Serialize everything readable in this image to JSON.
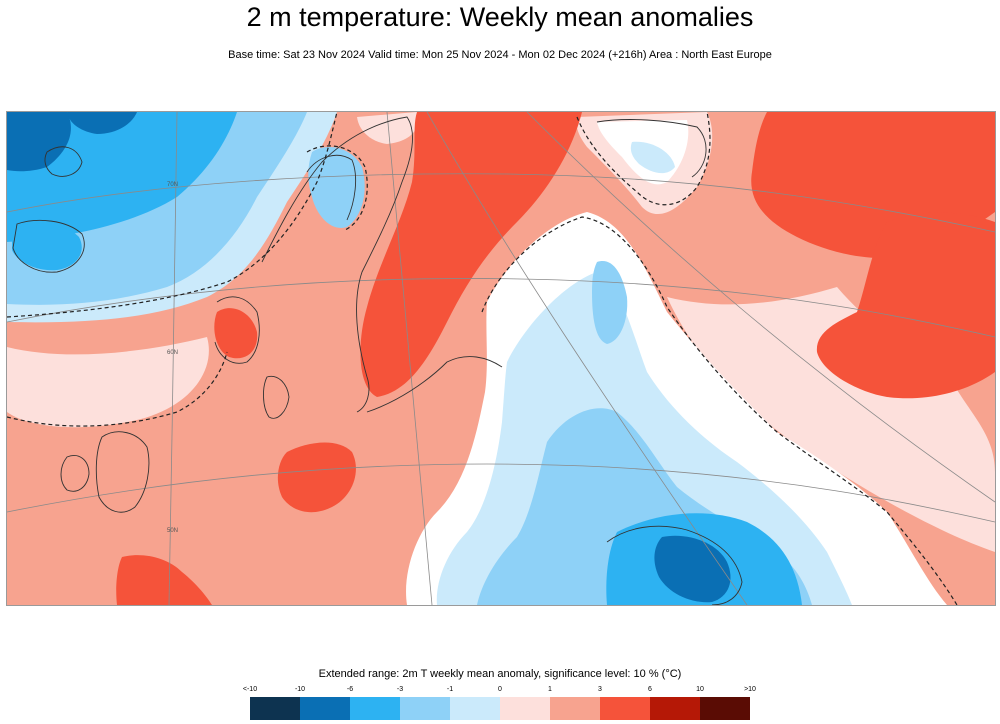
{
  "header": {
    "title": "2 m temperature: Weekly mean anomalies",
    "subtitle": "Base time: Sat 23 Nov 2024 Valid time: Mon 25 Nov 2024 - Mon 02 Dec 2024 (+216h) Area : North East Europe"
  },
  "map": {
    "graticule_labels": [
      "70N",
      "60N",
      "50N"
    ]
  },
  "legend": {
    "title": "Extended range: 2m T weekly mean anomaly, significance level: 10 % (°C)",
    "tick_labels": [
      "<-10",
      "-10",
      "-6",
      "-3",
      "-1",
      "0",
      "1",
      "3",
      "6",
      "10",
      ">10"
    ],
    "colors": [
      "#0d3350",
      "#0a6fb4",
      "#2db2f2",
      "#8ed1f7",
      "#cbeafb",
      "#fde0dc",
      "#f7a38f",
      "#f5533a",
      "#b51806",
      "#5a0c04"
    ]
  }
}
